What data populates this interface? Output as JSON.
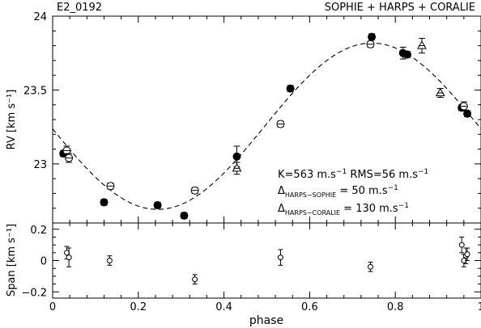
{
  "labels": {
    "target": "E2_0192",
    "instruments": "SOPHIE + HARPS + CORALIE",
    "rv_ylabel": "RV [km s⁻¹]",
    "span_ylabel": "Span [km s⁻¹]",
    "xlabel": "phase"
  },
  "annotation": {
    "line1_a": "K=563 m.s",
    "line1_sup_a": "−1",
    "line1_b": " RMS=56 m.s",
    "line1_sup_b": "−1",
    "line2_delta": "Δ",
    "line2_sub": "HARPS−SOPHIE",
    "line2_rest": " = 50 m.s",
    "line2_sup": "−1",
    "line3_delta": "Δ",
    "line3_sub": "HARPS−CORALIE",
    "line3_rest": " = 130 m.s",
    "line3_sup": "−1"
  },
  "chart_data": [
    {
      "type": "scatter",
      "panel": "rv",
      "xlim": [
        0,
        1
      ],
      "ylim": [
        22.6,
        24
      ],
      "yticks": [
        23,
        23.5,
        24
      ],
      "ytick_labels": [
        "23",
        "23.5",
        "24"
      ],
      "model": {
        "style": "dashed",
        "gamma": 23.255,
        "K": 0.563,
        "phase_of_max": 0.745
      },
      "series": [
        {
          "marker": "filled-circle",
          "points": [
            {
              "x": 0.025,
              "y": 23.07,
              "err": 0.02
            },
            {
              "x": 0.12,
              "y": 22.74,
              "err": 0.02
            },
            {
              "x": 0.245,
              "y": 22.72,
              "err": 0.02
            },
            {
              "x": 0.307,
              "y": 22.65,
              "err": 0.02
            },
            {
              "x": 0.43,
              "y": 23.05,
              "err": 0.07
            },
            {
              "x": 0.555,
              "y": 23.51,
              "err": 0.02
            },
            {
              "x": 0.745,
              "y": 23.86,
              "err": 0.02
            },
            {
              "x": 0.818,
              "y": 23.75,
              "err": 0.04
            },
            {
              "x": 0.828,
              "y": 23.74,
              "err": 0.02
            },
            {
              "x": 0.955,
              "y": 23.38,
              "err": 0.02
            },
            {
              "x": 0.968,
              "y": 23.34,
              "err": 0.02
            }
          ]
        },
        {
          "marker": "open-circle",
          "points": [
            {
              "x": 0.033,
              "y": 23.09,
              "err": 0.03
            },
            {
              "x": 0.038,
              "y": 23.04,
              "err": 0.03
            },
            {
              "x": 0.135,
              "y": 22.85,
              "err": 0.02
            },
            {
              "x": 0.332,
              "y": 22.82,
              "err": 0.02
            },
            {
              "x": 0.532,
              "y": 23.27,
              "err": 0.02
            },
            {
              "x": 0.742,
              "y": 23.81,
              "err": 0.02
            },
            {
              "x": 0.96,
              "y": 23.39,
              "err": 0.03
            }
          ]
        },
        {
          "marker": "open-triangle",
          "points": [
            {
              "x": 0.43,
              "y": 22.97,
              "err": 0.04
            },
            {
              "x": 0.862,
              "y": 23.8,
              "err": 0.05
            },
            {
              "x": 0.905,
              "y": 23.48,
              "err": 0.03
            }
          ]
        }
      ]
    },
    {
      "type": "scatter",
      "panel": "span",
      "xlabel": "phase",
      "xlim": [
        0,
        1
      ],
      "ylim": [
        -0.24,
        0.24
      ],
      "xticks": [
        0,
        0.2,
        0.4,
        0.6,
        0.8,
        1
      ],
      "xtick_labels": [
        "0",
        "0.2",
        "0.4",
        "0.6",
        "0.8",
        "1"
      ],
      "yticks": [
        -0.2,
        0,
        0.2
      ],
      "ytick_labels": [
        "−0.2",
        "0",
        "0.2"
      ],
      "points": [
        {
          "x": 0.033,
          "y": 0.05,
          "err": 0.04
        },
        {
          "x": 0.038,
          "y": 0.02,
          "err": 0.06
        },
        {
          "x": 0.133,
          "y": 0.0,
          "err": 0.03
        },
        {
          "x": 0.332,
          "y": -0.12,
          "err": 0.03
        },
        {
          "x": 0.532,
          "y": 0.02,
          "err": 0.05
        },
        {
          "x": 0.742,
          "y": -0.04,
          "err": 0.03
        },
        {
          "x": 0.955,
          "y": 0.1,
          "err": 0.05
        },
        {
          "x": 0.96,
          "y": 0.0,
          "err": 0.04
        },
        {
          "x": 0.965,
          "y": 0.03,
          "err": 0.05
        },
        {
          "x": 0.968,
          "y": 0.04,
          "err": 0.04
        }
      ]
    }
  ]
}
